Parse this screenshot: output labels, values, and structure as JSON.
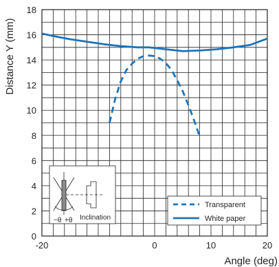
{
  "chart_data": {
    "type": "line",
    "xlabel": "Angle (deg)",
    "ylabel": "Distance Y (mm)",
    "xlim": [
      -20,
      20
    ],
    "ylim": [
      0,
      18
    ],
    "x_ticks": [
      "-20",
      "0",
      "10",
      "20"
    ],
    "y_ticks": [
      "0",
      "2",
      "4",
      "6",
      "8",
      "10",
      "12",
      "14",
      "16",
      "18"
    ],
    "grid": true,
    "legend_position": "bottom-right",
    "series": [
      {
        "name": "Transparent",
        "style": "dashed",
        "color": "#1b75bc",
        "points": [
          [
            -8,
            9.0
          ],
          [
            -7,
            10.9
          ],
          [
            -6,
            12.3
          ],
          [
            -5,
            13.2
          ],
          [
            -4,
            13.7
          ],
          [
            -3,
            14.1
          ],
          [
            -2,
            14.3
          ],
          [
            -1,
            14.35
          ],
          [
            0,
            14.3
          ],
          [
            1,
            14.1
          ],
          [
            2,
            13.75
          ],
          [
            3,
            13.2
          ],
          [
            4,
            12.4
          ],
          [
            5,
            11.5
          ],
          [
            6,
            10.4
          ],
          [
            7,
            9.2
          ],
          [
            8,
            7.9
          ]
        ]
      },
      {
        "name": "White paper",
        "style": "solid",
        "color": "#1b75bc",
        "points": [
          [
            -20,
            16.1
          ],
          [
            -18,
            15.9
          ],
          [
            -15,
            15.65
          ],
          [
            -12,
            15.45
          ],
          [
            -9,
            15.25
          ],
          [
            -6,
            15.1
          ],
          [
            -3,
            15.0
          ],
          [
            -1,
            15.0
          ],
          [
            0,
            14.95
          ],
          [
            2,
            14.85
          ],
          [
            5,
            14.7
          ],
          [
            8,
            14.75
          ],
          [
            11,
            14.85
          ],
          [
            14,
            15.0
          ],
          [
            17,
            15.2
          ],
          [
            20,
            15.7
          ]
        ]
      }
    ],
    "inset": {
      "label": "Inclination",
      "angle_labels": [
        "−θ",
        "+θ"
      ]
    }
  }
}
